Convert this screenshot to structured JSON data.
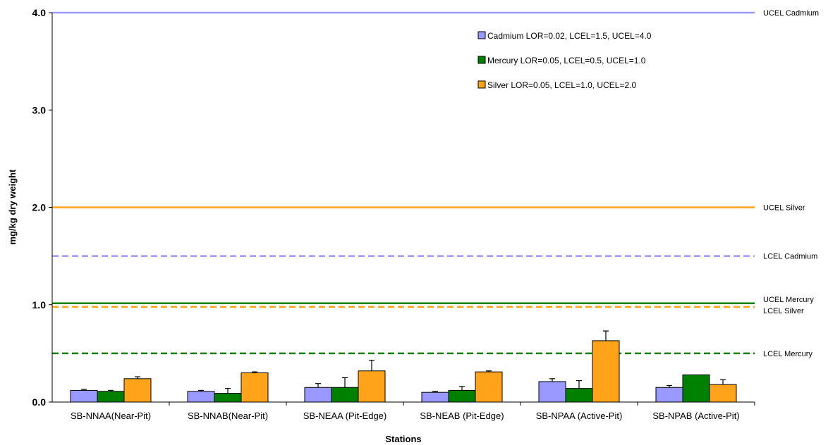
{
  "chart_data": {
    "type": "bar",
    "title": "",
    "xlabel": "Stations",
    "ylabel": "mg/kg dry weight",
    "ylim": [
      0,
      4.0
    ],
    "yticks": [
      "0.0",
      "1.0",
      "2.0",
      "3.0",
      "4.0"
    ],
    "categories": [
      "SB-NNAA(Near-Pit)",
      "SB-NNAB(Near-Pit)",
      "SB-NEAA (Pit-Edge)",
      "SB-NEAB (Pit-Edge)",
      "SB-NPAA (Active-Pit)",
      "SB-NPAB (Active-Pit)"
    ],
    "series": [
      {
        "name": "Cadmium LOR=0.02, LCEL=1.5, UCEL=4.0",
        "color": "#9999ff",
        "values": [
          0.12,
          0.11,
          0.15,
          0.1,
          0.21,
          0.15
        ],
        "errors": [
          0.01,
          0.01,
          0.04,
          0.01,
          0.03,
          0.02
        ]
      },
      {
        "name": "Mercury LOR=0.05, LCEL=0.5, UCEL=1.0",
        "color": "#008000",
        "values": [
          0.11,
          0.09,
          0.15,
          0.12,
          0.14,
          0.28
        ],
        "errors": [
          0.01,
          0.05,
          0.1,
          0.04,
          0.08,
          0.0
        ]
      },
      {
        "name": "Silver LOR=0.05, LCEL=1.0, UCEL=2.0",
        "color": "#ffa31a",
        "values": [
          0.24,
          0.3,
          0.32,
          0.31,
          0.63,
          0.18
        ],
        "errors": [
          0.02,
          0.01,
          0.11,
          0.01,
          0.1,
          0.05
        ]
      }
    ],
    "reference_lines": [
      {
        "label": "UCEL Cadmium",
        "value": 4.0,
        "color": "#9999ff",
        "style": "solid"
      },
      {
        "label": "UCEL Silver",
        "value": 2.0,
        "color": "#ffa31a",
        "style": "solid"
      },
      {
        "label": "LCEL Cadmium",
        "value": 1.5,
        "color": "#9999ff",
        "style": "dashed"
      },
      {
        "label": "UCEL Mercury",
        "value": 1.0,
        "color": "#008000",
        "style": "solid"
      },
      {
        "label": "LCEL Silver",
        "value": 1.0,
        "color": "#ffa31a",
        "style": "dashed"
      },
      {
        "label": "LCEL Mercury",
        "value": 0.5,
        "color": "#008000",
        "style": "dashed"
      }
    ],
    "legend_position": "top-right",
    "grid": false
  }
}
